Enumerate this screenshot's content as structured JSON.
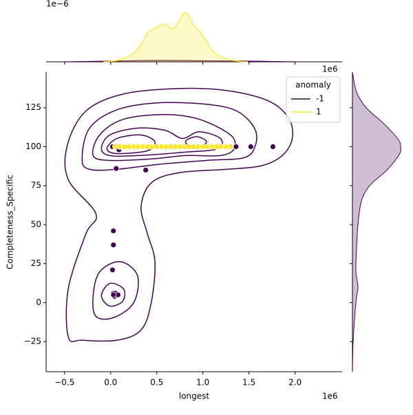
{
  "chart_data": {
    "type": "jointplot",
    "x_label": "longest",
    "y_label": "Completeness_Specific",
    "x_offset_label": "1e6",
    "top_offset_label": "1e6",
    "top_y_offset_label": "1e−6",
    "xlim": [
      -0.7,
      2.51
    ],
    "ylim": [
      -44.3,
      147.8
    ],
    "xticks": [
      {
        "value": -0.5,
        "label": "−0.5"
      },
      {
        "value": 0,
        "label": "0.0"
      },
      0.5,
      {
        "value": 1,
        "label": "1.0"
      },
      1.5,
      {
        "value": 2,
        "label": "2.0"
      }
    ],
    "yticks": [
      {
        "value": -25,
        "label": "−25"
      },
      0,
      25,
      50,
      75,
      100,
      125
    ],
    "legend_title": "anomaly",
    "legend_loc": "upper right",
    "series": [
      {
        "name": "-1",
        "color": "#440154",
        "x": [
          0.02,
          0.05,
          0.07,
          0.1,
          0.06,
          0.09,
          0.38,
          0.68,
          1.05,
          1.18,
          1.36,
          1.52,
          1.76,
          0.03,
          0.03,
          0.02,
          0.03,
          0.04,
          0.05,
          0.08,
          0.03
        ],
        "values": [
          100,
          100,
          100,
          100,
          86,
          98,
          85,
          100,
          100,
          100,
          100,
          100,
          100,
          46,
          37,
          21,
          6,
          4,
          6,
          5,
          5
        ]
      },
      {
        "name": "1",
        "color": "#fde725",
        "x": [
          0.05,
          0.1,
          0.15,
          0.2,
          0.25,
          0.3,
          0.35,
          0.4,
          0.45,
          0.5,
          0.55,
          0.6,
          0.65,
          0.7,
          0.75,
          0.8,
          0.85,
          0.9,
          0.95,
          1.0,
          1.05,
          1.1,
          1.15,
          1.2,
          1.25,
          1.3
        ],
        "values": [
          100,
          100,
          100,
          100,
          100,
          100,
          100,
          100,
          100,
          100,
          100,
          100,
          100,
          100,
          100,
          100,
          100,
          100,
          100,
          100,
          100,
          100,
          100,
          100,
          100,
          100
        ]
      }
    ],
    "contour_color": "#440154",
    "contours": [
      {
        "x": [
          -0.46,
          -0.46,
          -0.27,
          -0.16,
          -0.46,
          -0.47,
          -0.27,
          0.14,
          0.74,
          1.26,
          1.71,
          1.93,
          1.97,
          1.86,
          1.63,
          1.26,
          0.74,
          0.44,
          0.33,
          0.4,
          0.48,
          0.44,
          0.33,
          0.07,
          -0.31
        ],
        "y": [
          -21.9,
          8.8,
          43.9,
          57.0,
          78.9,
          100.9,
          122.8,
          133.8,
          137.3,
          136.0,
          129.4,
          118.4,
          105.3,
          94.3,
          87.7,
          85.5,
          83.3,
          76.8,
          61.4,
          43.9,
          26.3,
          0,
          -17.5,
          -24.1,
          -24.1
        ]
      },
      {
        "x": [
          -0.31,
          -0.23,
          0.07,
          0.51,
          1.04,
          1.37,
          1.56,
          1.57,
          1.45,
          1.04,
          0.51,
          0.07,
          -0.23
        ],
        "y": [
          92.1,
          111.8,
          123.7,
          128.1,
          127.2,
          122.8,
          111.8,
          100.9,
          93.0,
          91.2,
          88.6,
          85.5,
          85.5
        ]
      },
      {
        "x": [
          -0.19,
          -0.12,
          0.14,
          0.59,
          0.96,
          1.3,
          1.34,
          1.19,
          0.81,
          0.44,
          -0.01
        ],
        "y": [
          94.3,
          107.5,
          117.6,
          120.6,
          117.6,
          107.5,
          98.7,
          94.3,
          94.3,
          92.1,
          91.2
        ]
      },
      {
        "x": [
          -0.1,
          -0.01,
          0.29,
          0.59,
          0.78,
          0.96,
          1.19,
          1.16,
          0.81,
          0.29,
          -0.01
        ],
        "y": [
          98.7,
          107.5,
          111.9,
          110.5,
          105.3,
          109.6,
          105.3,
          98.7,
          96.5,
          94.3,
          94.3
        ]
      },
      {
        "x": [
          -0.04,
          0.07,
          0.33,
          0.48,
          0.4,
          0.07
        ],
        "y": [
          98.7,
          105.3,
          107.5,
          103.1,
          97.4,
          95.6
        ]
      },
      {
        "x": [
          0.81,
          0.93,
          1.04,
          0.93
        ],
        "y": [
          103.1,
          106.4,
          103.1,
          98.7
        ]
      },
      {
        "x": [
          -0.19,
          -0.12,
          0.1,
          0.29,
          0.25,
          0.03,
          -0.16
        ],
        "y": [
          4.4,
          19.7,
          26.3,
          17.5,
          0,
          -9.6,
          -8.8
        ]
      },
      {
        "x": [
          -0.1,
          -0.01,
          0.14,
          0.13,
          -0.01
        ],
        "y": [
          4.4,
          12.3,
          8.8,
          0.9,
          -2.2
        ]
      }
    ],
    "marginal_x": {
      "ylim": [
        0,
        0.85
      ],
      "series": [
        {
          "name": "-1",
          "color": "#440154",
          "x": [
            -0.5,
            0,
            0.5,
            1,
            1.5,
            2
          ],
          "density": [
            0,
            0.01,
            0.02,
            0.015,
            0.01,
            0
          ]
        },
        {
          "name": "1",
          "color": "#fde725",
          "x": [
            -0.08,
            0.07,
            0.22,
            0.33,
            0.4,
            0.5,
            0.59,
            0.66,
            0.72,
            0.81,
            0.89,
            0.96,
            1.04,
            1.11,
            1.22,
            1.37,
            1.49
          ],
          "density": [
            0,
            0.02,
            0.1,
            0.25,
            0.42,
            0.5,
            0.55,
            0.48,
            0.55,
            0.72,
            0.55,
            0.45,
            0.3,
            0.15,
            0.06,
            0.01,
            0
          ]
        }
      ]
    },
    "marginal_y": {
      "xlim": [
        0,
        0.85
      ],
      "series": [
        {
          "name": "-1",
          "color": "#440154",
          "y": [
            -45,
            -25,
            0,
            10,
            20,
            35,
            50,
            65,
            75,
            85,
            95,
            100,
            105,
            115,
            125,
            135,
            148
          ],
          "density": [
            0,
            0.01,
            0.05,
            0.08,
            0.05,
            0.06,
            0.08,
            0.13,
            0.25,
            0.5,
            0.68,
            0.7,
            0.66,
            0.45,
            0.2,
            0.06,
            0
          ]
        }
      ]
    }
  }
}
